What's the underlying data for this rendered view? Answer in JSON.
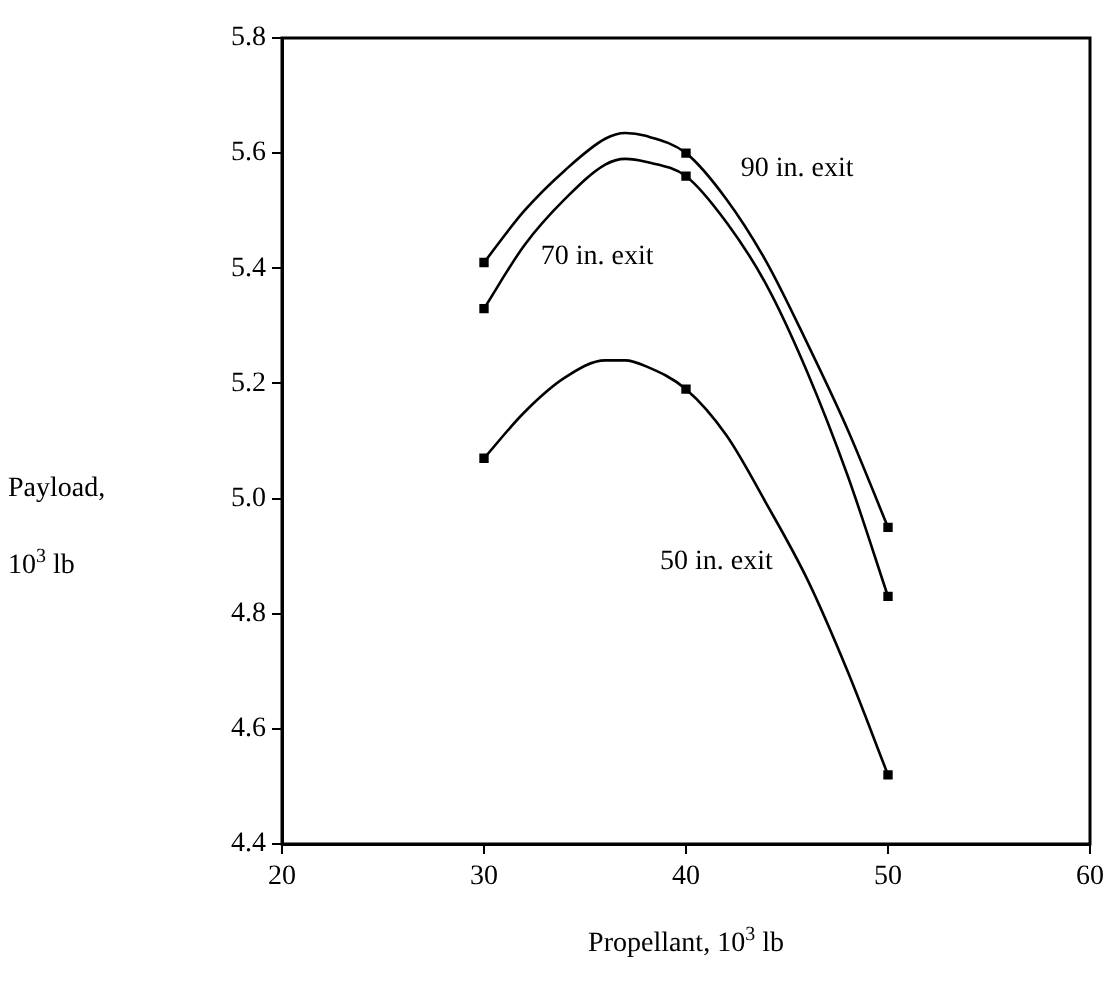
{
  "chart_data": {
    "type": "line",
    "xlabel": "Propellant, 10$^{3}$ lb",
    "ylabel": "Payload, 10$^{3}$ lb",
    "xlim": [
      20,
      60
    ],
    "xticks": [
      20,
      30,
      40,
      50,
      60
    ],
    "ylim": [
      4.4,
      5.8
    ],
    "yticks": [
      {
        "value": 4.4,
        "label": "4.4"
      },
      {
        "value": 4.6,
        "label": "4.6"
      },
      {
        "value": 4.8,
        "label": "4.8"
      },
      {
        "value": 5.0,
        "label": "5.0"
      },
      {
        "value": 5.2,
        "label": "5.2"
      },
      {
        "value": 5.4,
        "label": "5.4"
      },
      {
        "value": 5.6,
        "label": "5.6"
      },
      {
        "value": 5.8,
        "label": "5.8"
      }
    ],
    "grid": false,
    "legend": false,
    "line_style": "solid",
    "series": [
      {
        "name": "90 in. exit",
        "color": "#000000",
        "marker": "none",
        "x": [
          30,
          32,
          34,
          36,
          37,
          38,
          40,
          42,
          44,
          46,
          48,
          50
        ],
        "values": [
          5.41,
          5.5,
          5.57,
          5.625,
          5.635,
          5.63,
          5.6,
          5.52,
          5.41,
          5.27,
          5.12,
          4.95
        ]
      },
      {
        "name": "70 in. exit",
        "color": "#000000",
        "marker": "none",
        "x": [
          30,
          32,
          34,
          36,
          37,
          38,
          40,
          42,
          44,
          46,
          48,
          50
        ],
        "values": [
          5.33,
          5.44,
          5.52,
          5.58,
          5.59,
          5.585,
          5.56,
          5.48,
          5.37,
          5.22,
          5.04,
          4.83
        ]
      },
      {
        "name": "50 in. exit",
        "color": "#000000",
        "marker": "none",
        "x": [
          30,
          32,
          34,
          36,
          37,
          38,
          40,
          42,
          44,
          46,
          48,
          50
        ],
        "values": [
          5.07,
          5.15,
          5.21,
          5.24,
          5.24,
          5.23,
          5.19,
          5.11,
          4.99,
          4.86,
          4.7,
          4.52
        ]
      },
      {
        "type": "scatter",
        "color": "#000000",
        "marker": "square",
        "x": [
          30,
          40,
          50
        ],
        "values": [
          5.41,
          5.6,
          4.95
        ]
      },
      {
        "type": "scatter",
        "color": "#000000",
        "marker": "square",
        "x": [
          30,
          40,
          50
        ],
        "values": [
          5.33,
          5.56,
          4.83
        ]
      },
      {
        "type": "scatter",
        "color": "#000000",
        "marker": "square",
        "x": [
          30,
          40,
          50
        ],
        "values": [
          5.07,
          5.19,
          4.52
        ]
      }
    ]
  }
}
